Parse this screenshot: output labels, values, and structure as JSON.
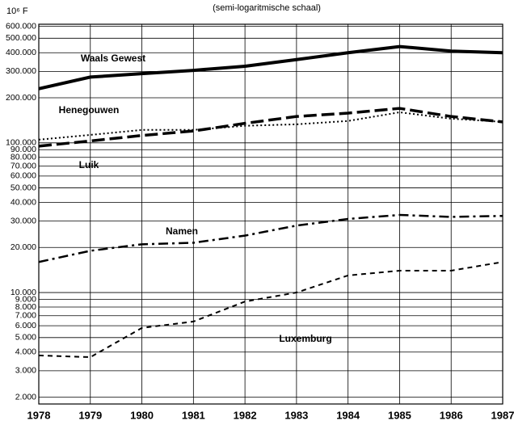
{
  "chart_data": {
    "type": "line",
    "title": "(semi-logaritmische schaal)",
    "y_axis_label": "10⁶ F",
    "log_y": true,
    "grid": true,
    "x": [
      1978,
      1979,
      1980,
      1981,
      1982,
      1983,
      1984,
      1985,
      1986,
      1987
    ],
    "xlim": [
      1978,
      1987
    ],
    "xticks": [
      1978,
      1979,
      1980,
      1981,
      1982,
      1983,
      1984,
      1985,
      1986,
      1987
    ],
    "ylim": [
      1800,
      620000
    ],
    "yticks": [
      {
        "value": 2000,
        "label": "2.000"
      },
      {
        "value": 3000,
        "label": "3.000"
      },
      {
        "value": 4000,
        "label": "4.000"
      },
      {
        "value": 5000,
        "label": "5.000"
      },
      {
        "value": 6000,
        "label": "6.000"
      },
      {
        "value": 7000,
        "label": "7.000"
      },
      {
        "value": 8000,
        "label": "8.000"
      },
      {
        "value": 9000,
        "label": "9.000"
      },
      {
        "value": 10000,
        "label": "10.000"
      },
      {
        "value": 20000,
        "label": "20.000"
      },
      {
        "value": 30000,
        "label": "30.000"
      },
      {
        "value": 40000,
        "label": "40.000"
      },
      {
        "value": 50000,
        "label": "50.000"
      },
      {
        "value": 60000,
        "label": "60.000"
      },
      {
        "value": 70000,
        "label": "70.000"
      },
      {
        "value": 80000,
        "label": "80.000"
      },
      {
        "value": 90000,
        "label": "90.000"
      },
      {
        "value": 100000,
        "label": "100.000"
      },
      {
        "value": 200000,
        "label": "200.000"
      },
      {
        "value": 300000,
        "label": "300.000"
      },
      {
        "value": 400000,
        "label": "400.000"
      },
      {
        "value": 500000,
        "label": "500.000"
      },
      {
        "value": 600000,
        "label": "600.000"
      }
    ],
    "series": [
      {
        "name": "Waals Gewest",
        "color": "#000000",
        "style": "solid",
        "values": [
          230000,
          275000,
          290000,
          305000,
          325000,
          360000,
          400000,
          440000,
          410000,
          400000
        ]
      },
      {
        "name": "Henegouwen",
        "color": "#000000",
        "style": "longdash",
        "values": [
          95000,
          103000,
          112000,
          120000,
          135000,
          150000,
          158000,
          170000,
          150000,
          138000
        ]
      },
      {
        "name": "Luik",
        "color": "#000000",
        "style": "dotted",
        "values": [
          105000,
          113000,
          122000,
          122000,
          130000,
          133000,
          140000,
          160000,
          145000,
          138000
        ]
      },
      {
        "name": "Namen",
        "color": "#000000",
        "style": "dashdot",
        "values": [
          16000,
          19000,
          21000,
          21500,
          24000,
          28000,
          31000,
          33000,
          32000,
          32500
        ]
      },
      {
        "name": "Luxemburg",
        "color": "#000000",
        "style": "dashed",
        "values": [
          3800,
          3700,
          5800,
          6400,
          8700,
          10000,
          13000,
          14000,
          14000,
          16000
        ]
      }
    ]
  }
}
